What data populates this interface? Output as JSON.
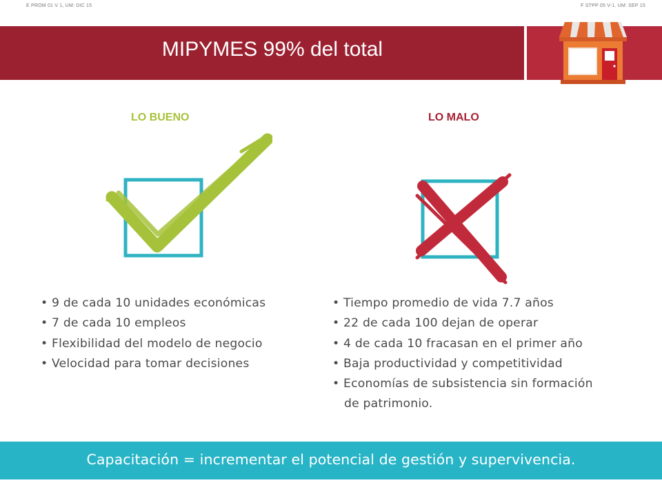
{
  "header": {
    "code_left": "E PROM 01 V 1, UM: DIC 15",
    "code_right": "F STPP 05 V-1. UM: SEP 15",
    "title": "MIPYMES 99% del total"
  },
  "good": {
    "heading": "LO BUENO",
    "icon": "checkmark-icon",
    "items": [
      "9 de cada 10 unidades económicas",
      "7 de cada 10 empleos",
      "Flexibilidad del modelo de negocio",
      "Velocidad para tomar decisiones"
    ]
  },
  "bad": {
    "heading": "LO MALO",
    "icon": "x-mark-icon",
    "items": [
      "Tiempo promedio de vida 7.7 años",
      "22 de cada 100 dejan de operar",
      "4 de cada 10 fracasan en el primer año",
      "Baja productividad y competitividad",
      "Economías de subsistencia sin formación",
      "de patrimonio."
    ]
  },
  "footer": {
    "text": "Capacitación = incrementar el potencial de gestión y supervivencia."
  },
  "colors": {
    "banner": "#9b2131",
    "banner_right": "#b72a3c",
    "good_accent": "#a6c23a",
    "bad_accent": "#a82033",
    "box_teal": "#2fb3c2",
    "footer_bar": "#27b4c6"
  },
  "icons": {
    "store": "store-icon"
  }
}
